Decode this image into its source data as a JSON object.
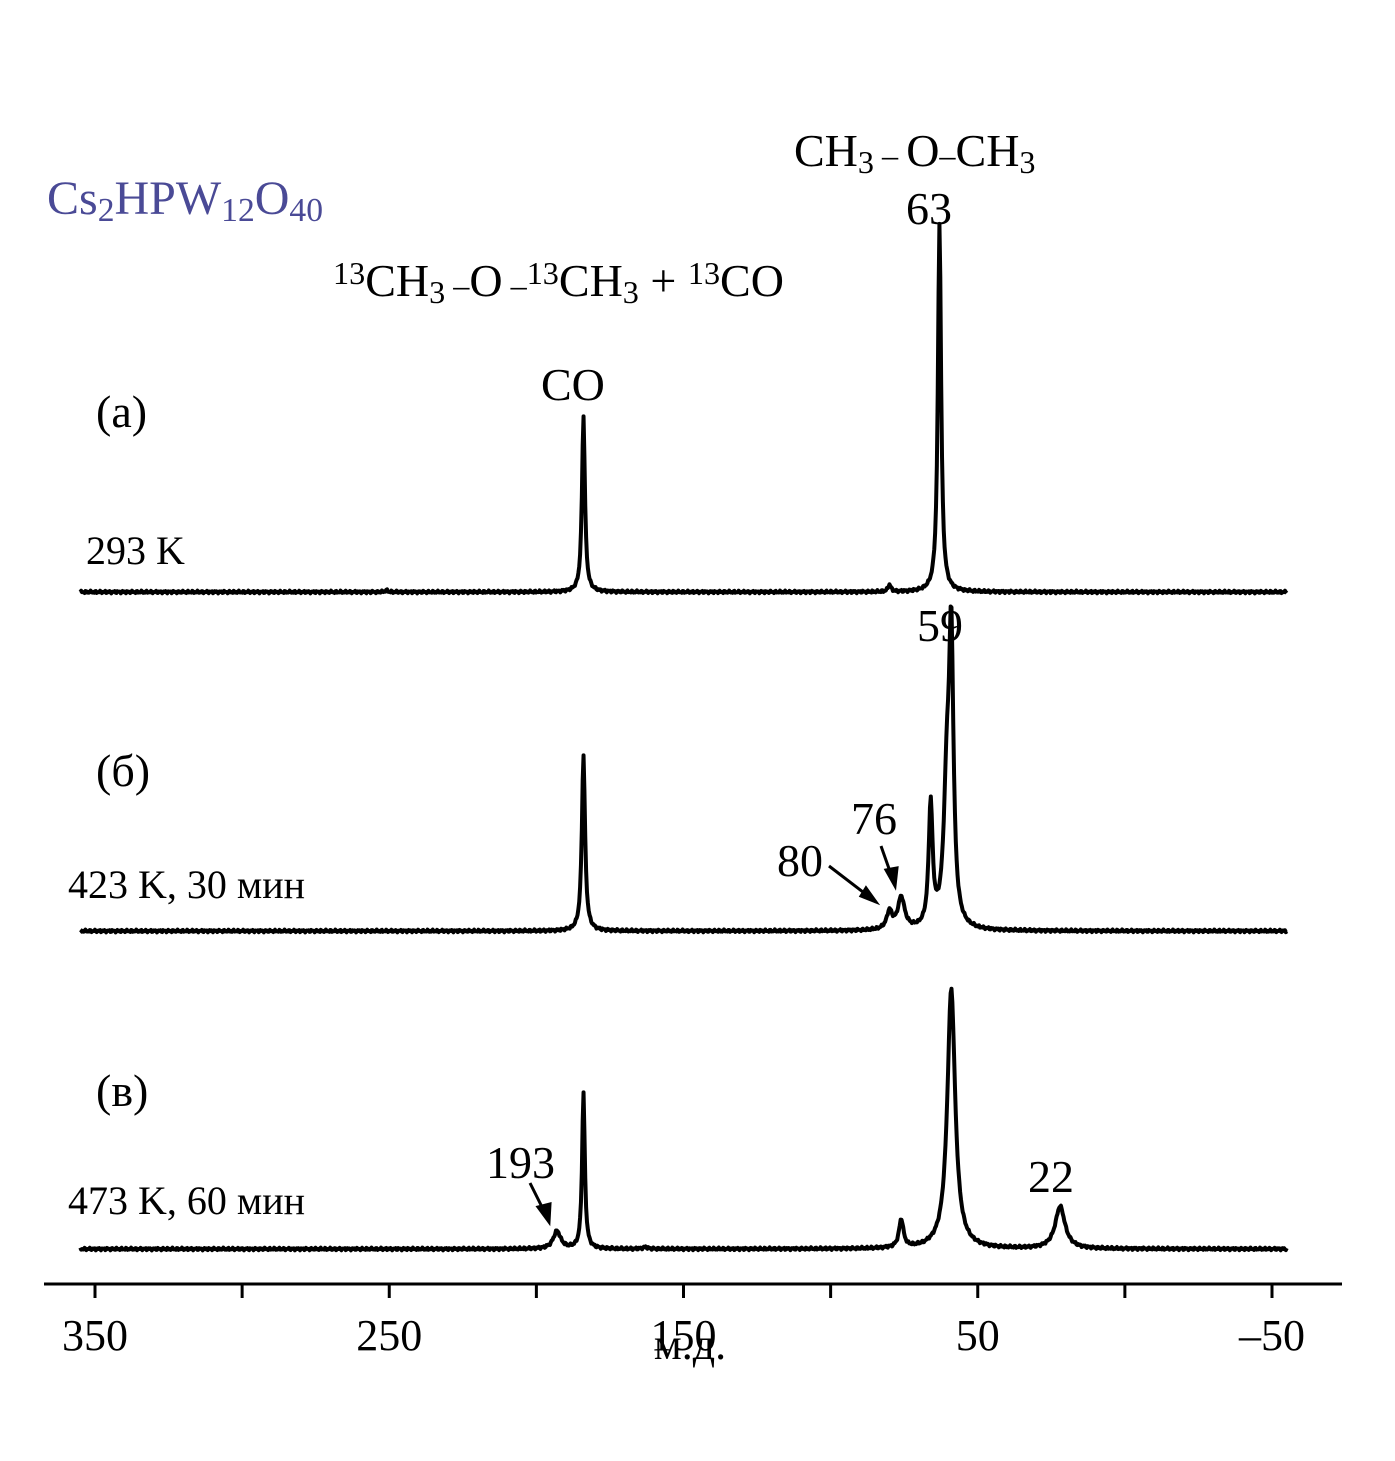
{
  "catalyst": {
    "parts": [
      {
        "t": "Cs",
        "s": "base"
      },
      {
        "t": "2",
        "s": "sub"
      },
      {
        "t": "HPW",
        "s": "base"
      },
      {
        "t": "12",
        "s": "sub"
      },
      {
        "t": "O",
        "s": "base"
      },
      {
        "t": "40",
        "s": "sub"
      }
    ],
    "color": "#4a4a96"
  },
  "labels": {
    "reaction": {
      "parts": [
        {
          "t": "13",
          "s": "sup"
        },
        {
          "t": "CH",
          "s": "base"
        },
        {
          "t": "3",
          "s": "sub"
        },
        {
          "t": " –",
          "s": "dash"
        },
        {
          "t": "O",
          "s": "base"
        },
        {
          "t": " –",
          "s": "dash"
        },
        {
          "t": "13",
          "s": "sup"
        },
        {
          "t": "CH",
          "s": "base"
        },
        {
          "t": "3",
          "s": "sub"
        },
        {
          "t": " + ",
          "s": "base"
        },
        {
          "t": "13",
          "s": "sup"
        },
        {
          "t": "CO",
          "s": "base"
        }
      ]
    },
    "dme": {
      "parts": [
        {
          "t": "CH",
          "s": "base"
        },
        {
          "t": "3",
          "s": "sub"
        },
        {
          "t": " – ",
          "s": "dash"
        },
        {
          "t": "O",
          "s": "base"
        },
        {
          "t": "–",
          "s": "dash"
        },
        {
          "t": "CH",
          "s": "base"
        },
        {
          "t": "3",
          "s": "sub"
        }
      ]
    },
    "co": "CO",
    "peak_63": "63",
    "peak_59": "59",
    "peak_76": "76",
    "peak_80": "80",
    "peak_193": "193",
    "peak_22": "22"
  },
  "chart_data": {
    "type": "line",
    "title": "",
    "xlabel": "м.д.",
    "ylabel": "",
    "xlim": [
      355,
      -57
    ],
    "x_reversed": true,
    "x_ticks": [
      350,
      250,
      150,
      50,
      -50
    ],
    "x_tick_labels": [
      "350",
      "250",
      "150",
      "50",
      "–50"
    ],
    "x_minor_ticks": [
      300,
      200,
      100,
      0
    ],
    "series": [
      {
        "name": "(а)",
        "condition": "293 K",
        "peaks": [
          {
            "x": 184,
            "height": 1.0,
            "width": 1.2
          },
          {
            "x": 63,
            "height": 2.1,
            "width": 1.3
          },
          {
            "x": 80,
            "height": 0.04,
            "width": 1.2
          },
          {
            "x": 251,
            "height": 0.01,
            "width": 1.0
          }
        ]
      },
      {
        "name": "(б)",
        "condition": "423 K, 30 мин",
        "peaks": [
          {
            "x": 184,
            "height": 1.0,
            "width": 1.3
          },
          {
            "x": 59,
            "height": 1.55,
            "width": 1.8
          },
          {
            "x": 60.5,
            "height": 0.75,
            "width": 2.5
          },
          {
            "x": 66,
            "height": 0.7,
            "width": 1.6
          },
          {
            "x": 76,
            "height": 0.18,
            "width": 2.8
          },
          {
            "x": 80,
            "height": 0.1,
            "width": 2.2
          }
        ]
      },
      {
        "name": "(в)",
        "condition": "473 K, 60 мин",
        "peaks": [
          {
            "x": 184,
            "height": 0.89,
            "width": 1.1
          },
          {
            "x": 193,
            "height": 0.1,
            "width": 3.0
          },
          {
            "x": 59,
            "height": 1.48,
            "width": 3.2
          },
          {
            "x": 76,
            "height": 0.16,
            "width": 1.8
          },
          {
            "x": 22,
            "height": 0.24,
            "width": 4.0
          },
          {
            "x": 163,
            "height": 0.01,
            "width": 2.0
          }
        ]
      }
    ]
  }
}
